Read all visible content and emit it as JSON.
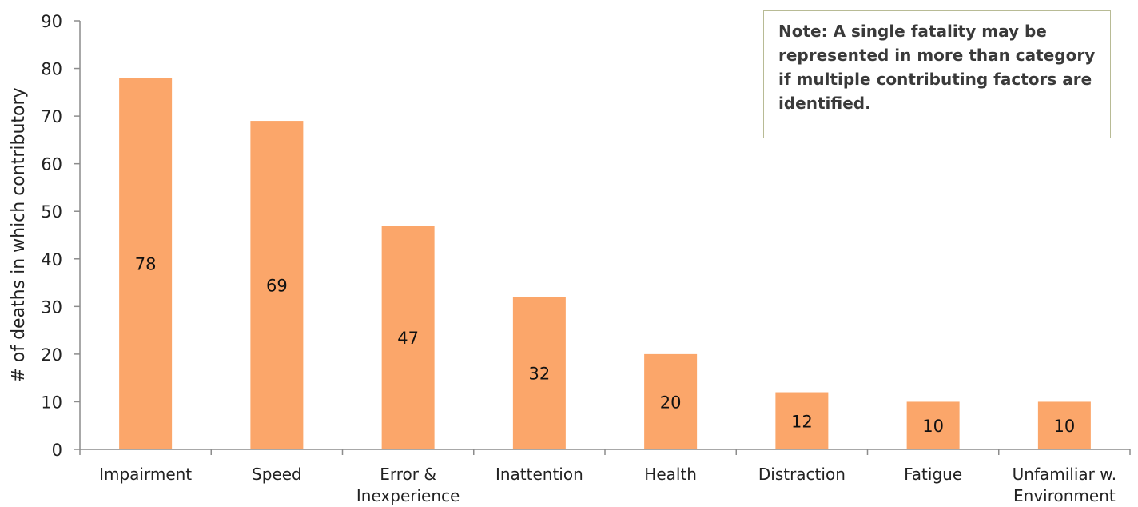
{
  "chart_data": {
    "type": "bar",
    "categories": [
      "Impairment",
      "Speed",
      "Error & Inexperience",
      "Inattention",
      "Health",
      "Distraction",
      "Fatigue",
      "Unfamiliar w. Environment"
    ],
    "category_lines": [
      [
        "Impairment"
      ],
      [
        "Speed"
      ],
      [
        "Error &",
        "Inexperience"
      ],
      [
        "Inattention"
      ],
      [
        "Health"
      ],
      [
        "Distraction"
      ],
      [
        "Fatigue"
      ],
      [
        "Unfamiliar w.",
        "Environment"
      ]
    ],
    "values": [
      78,
      69,
      47,
      32,
      20,
      12,
      10,
      10
    ],
    "title": "",
    "xlabel": "",
    "ylabel": "# of deaths in which contributory",
    "ylim": [
      0,
      90
    ],
    "yticks": [
      0,
      10,
      20,
      30,
      40,
      50,
      60,
      70,
      80,
      90
    ],
    "grid": false,
    "bar_color": "#fba66a",
    "data_labels": true
  },
  "note": {
    "text": "Note:  A single fatality may be represented in more than category if multiple contributing factors are identified."
  }
}
